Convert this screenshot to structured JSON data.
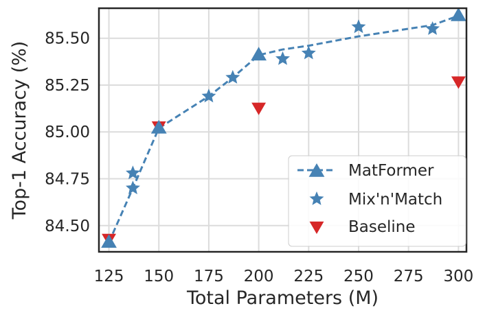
{
  "chart_data": {
    "type": "scatter",
    "xlabel": "Total Parameters (M)",
    "ylabel": "Top-1 Accuracy (%)",
    "xlim": [
      120,
      304
    ],
    "ylim": [
      84.36,
      85.66
    ],
    "xticks": [
      125,
      150,
      175,
      200,
      225,
      250,
      275,
      300
    ],
    "yticks": [
      84.5,
      84.75,
      85.0,
      85.25,
      85.5
    ],
    "xtick_labels": [
      "125",
      "150",
      "175",
      "200",
      "225",
      "250",
      "275",
      "300"
    ],
    "ytick_labels": [
      "84.50",
      "84.75",
      "85.00",
      "85.25",
      "85.50"
    ],
    "grid": true,
    "legend_position": "bottom-right",
    "series": [
      {
        "name": "MatFormer",
        "style": "dashed-line-triangle-up",
        "color": "#4682b4",
        "points": [
          [
            125,
            84.41
          ],
          [
            150,
            85.02
          ],
          [
            200,
            85.41
          ],
          [
            300,
            85.62
          ]
        ]
      },
      {
        "name": "Mix'n'Match",
        "style": "star",
        "color": "#4682b4",
        "points": [
          [
            137,
            84.78
          ],
          [
            137,
            84.7
          ],
          [
            175,
            85.19
          ],
          [
            187,
            85.29
          ],
          [
            212,
            85.39
          ],
          [
            225,
            85.42
          ],
          [
            250,
            85.56
          ],
          [
            287,
            85.55
          ]
        ]
      },
      {
        "name": "Baseline",
        "style": "triangle-down",
        "color": "#d62728",
        "points": [
          [
            125,
            84.43
          ],
          [
            150,
            85.03
          ],
          [
            200,
            85.13
          ],
          [
            300,
            85.27
          ]
        ]
      }
    ],
    "line_path": [
      [
        125,
        84.41
      ],
      [
        137,
        84.7
      ],
      [
        150,
        85.02
      ],
      [
        175,
        85.19
      ],
      [
        187,
        85.29
      ],
      [
        200,
        85.41
      ],
      [
        212,
        85.44
      ],
      [
        225,
        85.46
      ],
      [
        250,
        85.51
      ],
      [
        287,
        85.57
      ],
      [
        300,
        85.62
      ]
    ]
  }
}
